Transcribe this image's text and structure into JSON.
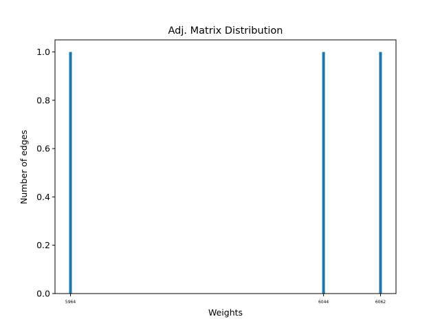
{
  "chart_data": {
    "type": "bar",
    "title": "Adj. Matrix Distribution",
    "xlabel": "Weights",
    "ylabel": "Number of edges",
    "x": [
      5964,
      6044,
      6062
    ],
    "values": [
      1.0,
      1.0,
      1.0
    ],
    "xticks": [
      "5964",
      "6044",
      "6062"
    ],
    "yticks": [
      "0.0",
      "0.2",
      "0.4",
      "0.6",
      "0.8",
      "1.0"
    ],
    "xlim": [
      5959.1,
      6066.9
    ],
    "ylim": [
      0,
      1.05
    ],
    "grid": false,
    "colors": {
      "bar": "#1f77b4"
    }
  }
}
